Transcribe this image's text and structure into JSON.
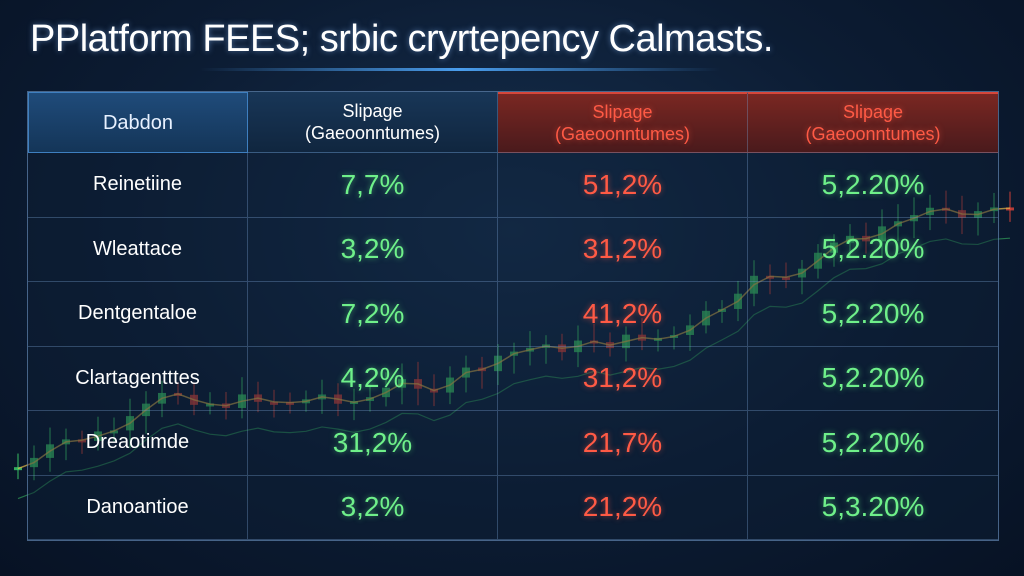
{
  "title": "Platform FEES; srbic cryrtepency Calmasts.",
  "title_icon": "P",
  "colors": {
    "positive": "#6ff08a",
    "negative": "#ff5a45",
    "header_blue": "#183657",
    "header_red": "#7a2722",
    "background": "#0c1c33"
  },
  "chart_data": {
    "type": "table",
    "columns": [
      {
        "title": "Dabdon",
        "subtitle": ""
      },
      {
        "title": "Slipage",
        "subtitle": "(Gaeoonntumes)"
      },
      {
        "title": "Slipage",
        "subtitle": "(Gaeoonntumes)"
      },
      {
        "title": "Slipage",
        "subtitle": "(Gaeoonntumes)"
      }
    ],
    "column_colors": [
      "blue",
      "green",
      "red",
      "green"
    ],
    "rows": [
      {
        "label": "Reinetiine",
        "values": [
          "7,7%",
          "51,2%",
          "5,2.20%"
        ],
        "colors": [
          "green",
          "red",
          "green"
        ]
      },
      {
        "label": "Wleattace",
        "values": [
          "3,2%",
          "31,2%",
          "5,2.20%"
        ],
        "colors": [
          "green",
          "red",
          "green"
        ]
      },
      {
        "label": "Dentgentaloe",
        "values": [
          "7,2%",
          "41,2%",
          "5,2.20%"
        ],
        "colors": [
          "green",
          "red",
          "green"
        ]
      },
      {
        "label": "Clartagentttes",
        "values": [
          "4,2%",
          "31,2%",
          "5,2.20%"
        ],
        "colors": [
          "green",
          "red",
          "green"
        ]
      },
      {
        "label": "Dreaotimde",
        "values": [
          "31,2%",
          "21,7%",
          "5,2.20%"
        ],
        "colors": [
          "green",
          "red",
          "green"
        ]
      },
      {
        "label": "Danoantioe",
        "values": [
          "3,2%",
          "21,2%",
          "5,3.20%"
        ],
        "colors": [
          "green",
          "red",
          "green"
        ]
      }
    ]
  }
}
